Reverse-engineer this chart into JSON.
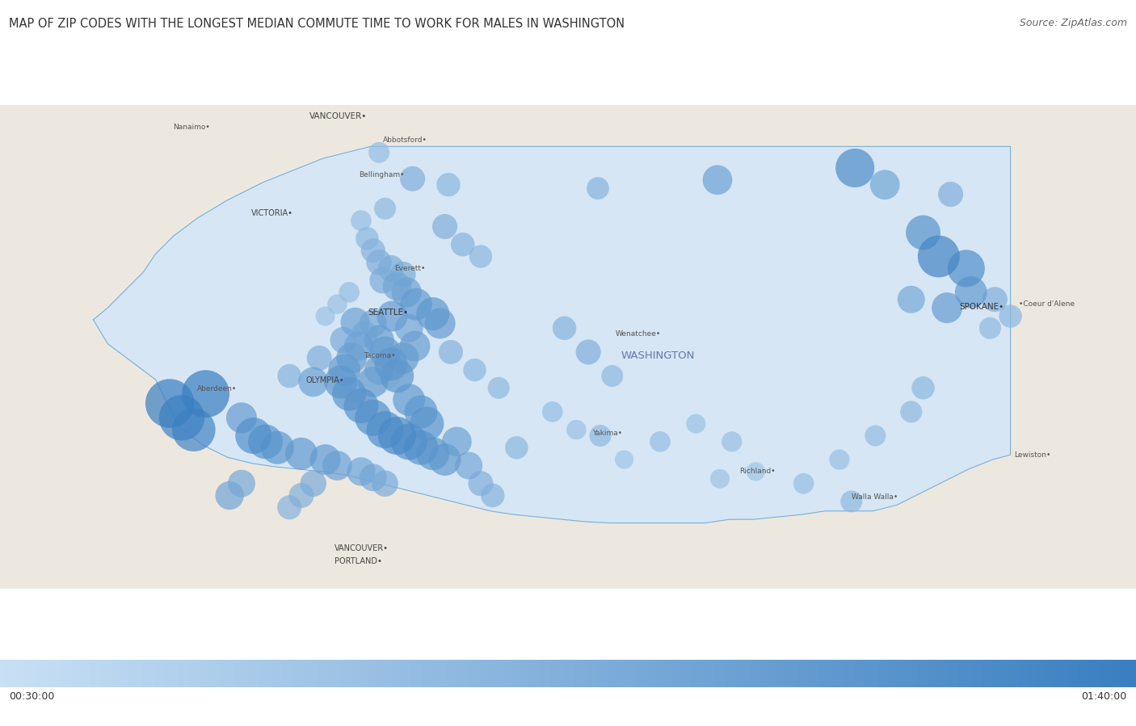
{
  "title": "MAP OF ZIP CODES WITH THE LONGEST MEDIAN COMMUTE TIME TO WORK FOR MALES IN WASHINGTON",
  "source": "Source: ZipAtlas.com",
  "colorbar_min_label": "00:30:00",
  "colorbar_max_label": "01:40:00",
  "colorbar_min": 30,
  "colorbar_max": 100,
  "title_color": "#333333",
  "title_fontsize": 10.5,
  "source_fontsize": 9,
  "gradient_colors": [
    "#c8e0f5",
    "#3a7fc1"
  ],
  "map_extent": [
    -125.5,
    -116.0,
    45.3,
    49.35
  ],
  "wa_fill": "#d4e6f7",
  "wa_border": "#7ab0d4",
  "outside_land": "#ede8df",
  "water_color": "#c9d9e8",
  "dots": [
    {
      "lon": -122.33,
      "lat": 48.95,
      "val": 55,
      "size": 350
    },
    {
      "lon": -122.05,
      "lat": 48.73,
      "val": 65,
      "size": 500
    },
    {
      "lon": -121.75,
      "lat": 48.68,
      "val": 60,
      "size": 450
    },
    {
      "lon": -120.5,
      "lat": 48.65,
      "val": 62,
      "size": 400
    },
    {
      "lon": -119.5,
      "lat": 48.72,
      "val": 75,
      "size": 700
    },
    {
      "lon": -118.35,
      "lat": 48.82,
      "val": 90,
      "size": 1200
    },
    {
      "lon": -118.1,
      "lat": 48.68,
      "val": 72,
      "size": 700
    },
    {
      "lon": -117.55,
      "lat": 48.6,
      "val": 65,
      "size": 500
    },
    {
      "lon": -117.78,
      "lat": 48.28,
      "val": 85,
      "size": 950
    },
    {
      "lon": -117.65,
      "lat": 48.08,
      "val": 95,
      "size": 1400
    },
    {
      "lon": -117.42,
      "lat": 47.98,
      "val": 88,
      "size": 1100
    },
    {
      "lon": -117.38,
      "lat": 47.78,
      "val": 80,
      "size": 820
    },
    {
      "lon": -117.58,
      "lat": 47.65,
      "val": 78,
      "size": 750
    },
    {
      "lon": -117.88,
      "lat": 47.72,
      "val": 70,
      "size": 600
    },
    {
      "lon": -117.18,
      "lat": 47.72,
      "val": 65,
      "size": 500
    },
    {
      "lon": -117.05,
      "lat": 47.58,
      "val": 60,
      "size": 420
    },
    {
      "lon": -117.22,
      "lat": 47.48,
      "val": 58,
      "size": 380
    },
    {
      "lon": -122.3,
      "lat": 47.88,
      "val": 68,
      "size": 550
    },
    {
      "lon": -122.18,
      "lat": 47.83,
      "val": 72,
      "size": 650
    },
    {
      "lon": -122.1,
      "lat": 47.78,
      "val": 75,
      "size": 720
    },
    {
      "lon": -122.02,
      "lat": 47.68,
      "val": 80,
      "size": 820
    },
    {
      "lon": -121.88,
      "lat": 47.6,
      "val": 82,
      "size": 870
    },
    {
      "lon": -121.82,
      "lat": 47.52,
      "val": 78,
      "size": 750
    },
    {
      "lon": -122.22,
      "lat": 47.58,
      "val": 78,
      "size": 750
    },
    {
      "lon": -122.38,
      "lat": 47.52,
      "val": 70,
      "size": 600
    },
    {
      "lon": -122.45,
      "lat": 47.43,
      "val": 68,
      "size": 550
    },
    {
      "lon": -122.5,
      "lat": 47.33,
      "val": 74,
      "size": 680
    },
    {
      "lon": -122.56,
      "lat": 47.23,
      "val": 77,
      "size": 740
    },
    {
      "lon": -122.62,
      "lat": 47.13,
      "val": 80,
      "size": 820
    },
    {
      "lon": -122.65,
      "lat": 47.03,
      "val": 82,
      "size": 870
    },
    {
      "lon": -122.58,
      "lat": 46.93,
      "val": 84,
      "size": 920
    },
    {
      "lon": -122.48,
      "lat": 46.83,
      "val": 86,
      "size": 970
    },
    {
      "lon": -122.38,
      "lat": 46.73,
      "val": 88,
      "size": 1050
    },
    {
      "lon": -122.28,
      "lat": 46.63,
      "val": 90,
      "size": 1100
    },
    {
      "lon": -122.18,
      "lat": 46.58,
      "val": 92,
      "size": 1150
    },
    {
      "lon": -122.08,
      "lat": 46.53,
      "val": 88,
      "size": 1050
    },
    {
      "lon": -121.98,
      "lat": 46.48,
      "val": 85,
      "size": 950
    },
    {
      "lon": -121.88,
      "lat": 46.43,
      "val": 82,
      "size": 870
    },
    {
      "lon": -121.78,
      "lat": 46.38,
      "val": 80,
      "size": 820
    },
    {
      "lon": -122.33,
      "lat": 47.38,
      "val": 76,
      "size": 720
    },
    {
      "lon": -122.28,
      "lat": 47.28,
      "val": 79,
      "size": 790
    },
    {
      "lon": -122.23,
      "lat": 47.18,
      "val": 82,
      "size": 870
    },
    {
      "lon": -122.18,
      "lat": 47.08,
      "val": 83,
      "size": 900
    },
    {
      "lon": -122.88,
      "lat": 47.03,
      "val": 75,
      "size": 700
    },
    {
      "lon": -123.78,
      "lat": 46.93,
      "val": 100,
      "size": 1800
    },
    {
      "lon": -124.08,
      "lat": 46.85,
      "val": 100,
      "size": 1900
    },
    {
      "lon": -123.98,
      "lat": 46.73,
      "val": 98,
      "size": 1650
    },
    {
      "lon": -123.88,
      "lat": 46.63,
      "val": 95,
      "size": 1500
    },
    {
      "lon": -123.38,
      "lat": 46.58,
      "val": 88,
      "size": 1050
    },
    {
      "lon": -123.28,
      "lat": 46.53,
      "val": 85,
      "size": 950
    },
    {
      "lon": -123.18,
      "lat": 46.48,
      "val": 82,
      "size": 870
    },
    {
      "lon": -122.98,
      "lat": 46.43,
      "val": 80,
      "size": 820
    },
    {
      "lon": -122.78,
      "lat": 46.38,
      "val": 78,
      "size": 750
    },
    {
      "lon": -122.68,
      "lat": 46.33,
      "val": 75,
      "size": 700
    },
    {
      "lon": -122.48,
      "lat": 46.28,
      "val": 72,
      "size": 650
    },
    {
      "lon": -122.38,
      "lat": 46.23,
      "val": 70,
      "size": 600
    },
    {
      "lon": -122.28,
      "lat": 46.18,
      "val": 68,
      "size": 550
    },
    {
      "lon": -121.18,
      "lat": 46.48,
      "val": 60,
      "size": 420
    },
    {
      "lon": -120.48,
      "lat": 46.58,
      "val": 58,
      "size": 380
    },
    {
      "lon": -119.98,
      "lat": 46.53,
      "val": 55,
      "size": 340
    },
    {
      "lon": -119.48,
      "lat": 46.22,
      "val": 52,
      "size": 300
    },
    {
      "lon": -119.18,
      "lat": 46.28,
      "val": 50,
      "size": 280
    },
    {
      "lon": -118.78,
      "lat": 46.18,
      "val": 55,
      "size": 340
    },
    {
      "lon": -118.38,
      "lat": 46.03,
      "val": 58,
      "size": 380
    },
    {
      "lon": -120.78,
      "lat": 47.48,
      "val": 62,
      "size": 450
    },
    {
      "lon": -120.58,
      "lat": 47.28,
      "val": 65,
      "size": 500
    },
    {
      "lon": -120.38,
      "lat": 47.08,
      "val": 58,
      "size": 380
    },
    {
      "lon": -122.13,
      "lat": 47.93,
      "val": 67,
      "size": 520
    },
    {
      "lon": -122.08,
      "lat": 47.48,
      "val": 71,
      "size": 630
    },
    {
      "lon": -122.33,
      "lat": 47.13,
      "val": 74,
      "size": 680
    },
    {
      "lon": -122.38,
      "lat": 47.03,
      "val": 77,
      "size": 740
    },
    {
      "lon": -122.08,
      "lat": 46.88,
      "val": 80,
      "size": 820
    },
    {
      "lon": -121.98,
      "lat": 46.78,
      "val": 82,
      "size": 870
    },
    {
      "lon": -121.93,
      "lat": 46.68,
      "val": 84,
      "size": 920
    },
    {
      "lon": -121.68,
      "lat": 46.53,
      "val": 75,
      "size": 700
    },
    {
      "lon": -121.58,
      "lat": 46.33,
      "val": 70,
      "size": 600
    },
    {
      "lon": -121.48,
      "lat": 46.18,
      "val": 65,
      "size": 500
    },
    {
      "lon": -121.38,
      "lat": 46.08,
      "val": 62,
      "size": 450
    },
    {
      "lon": -122.03,
      "lat": 47.33,
      "val": 77,
      "size": 740
    },
    {
      "lon": -122.13,
      "lat": 47.23,
      "val": 79,
      "size": 790
    },
    {
      "lon": -122.53,
      "lat": 47.53,
      "val": 74,
      "size": 680
    },
    {
      "lon": -122.63,
      "lat": 47.38,
      "val": 68,
      "size": 550
    },
    {
      "lon": -122.83,
      "lat": 47.23,
      "val": 65,
      "size": 500
    },
    {
      "lon": -123.08,
      "lat": 47.08,
      "val": 62,
      "size": 450
    },
    {
      "lon": -121.73,
      "lat": 47.28,
      "val": 63,
      "size": 470
    },
    {
      "lon": -121.53,
      "lat": 47.13,
      "val": 60,
      "size": 420
    },
    {
      "lon": -121.33,
      "lat": 46.98,
      "val": 58,
      "size": 380
    },
    {
      "lon": -120.88,
      "lat": 46.78,
      "val": 55,
      "size": 340
    },
    {
      "lon": -120.68,
      "lat": 46.63,
      "val": 53,
      "size": 310
    },
    {
      "lon": -120.28,
      "lat": 46.38,
      "val": 50,
      "size": 280
    },
    {
      "lon": -119.68,
      "lat": 46.68,
      "val": 52,
      "size": 300
    },
    {
      "lon": -119.38,
      "lat": 46.53,
      "val": 54,
      "size": 330
    },
    {
      "lon": -117.78,
      "lat": 46.98,
      "val": 60,
      "size": 420
    },
    {
      "lon": -117.88,
      "lat": 46.78,
      "val": 58,
      "size": 380
    },
    {
      "lon": -118.18,
      "lat": 46.58,
      "val": 56,
      "size": 350
    },
    {
      "lon": -118.48,
      "lat": 46.38,
      "val": 54,
      "size": 330
    },
    {
      "lon": -122.88,
      "lat": 46.18,
      "val": 68,
      "size": 550
    },
    {
      "lon": -122.98,
      "lat": 46.08,
      "val": 65,
      "size": 500
    },
    {
      "lon": -123.08,
      "lat": 45.98,
      "val": 63,
      "size": 470
    },
    {
      "lon": -123.48,
      "lat": 46.18,
      "val": 70,
      "size": 600
    },
    {
      "lon": -123.58,
      "lat": 46.08,
      "val": 72,
      "size": 650
    },
    {
      "lon": -123.48,
      "lat": 46.73,
      "val": 78,
      "size": 750
    },
    {
      "lon": -121.78,
      "lat": 48.33,
      "val": 65,
      "size": 500
    },
    {
      "lon": -121.63,
      "lat": 48.18,
      "val": 62,
      "size": 450
    },
    {
      "lon": -121.48,
      "lat": 48.08,
      "val": 60,
      "size": 420
    },
    {
      "lon": -122.28,
      "lat": 48.48,
      "val": 58,
      "size": 380
    },
    {
      "lon": -122.48,
      "lat": 48.38,
      "val": 55,
      "size": 340
    },
    {
      "lon": -122.43,
      "lat": 48.23,
      "val": 60,
      "size": 420
    },
    {
      "lon": -122.38,
      "lat": 48.13,
      "val": 63,
      "size": 470
    },
    {
      "lon": -122.33,
      "lat": 48.03,
      "val": 66,
      "size": 520
    },
    {
      "lon": -122.23,
      "lat": 47.98,
      "val": 68,
      "size": 550
    },
    {
      "lon": -122.58,
      "lat": 47.78,
      "val": 55,
      "size": 340
    },
    {
      "lon": -122.68,
      "lat": 47.68,
      "val": 53,
      "size": 310
    },
    {
      "lon": -122.78,
      "lat": 47.58,
      "val": 52,
      "size": 300
    }
  ],
  "cities": [
    {
      "name": "VANCOUVER•",
      "lon": -122.67,
      "lat": 49.25,
      "fontsize": 7.5,
      "ha": "center",
      "color": "#444444"
    },
    {
      "name": "Nanaimo•",
      "lon": -124.05,
      "lat": 49.16,
      "fontsize": 6.5,
      "ha": "left",
      "color": "#555555"
    },
    {
      "name": "Abbotsford•",
      "lon": -122.3,
      "lat": 49.05,
      "fontsize": 6.5,
      "ha": "left",
      "color": "#555555"
    },
    {
      "name": "Bellingham•",
      "lon": -122.5,
      "lat": 48.76,
      "fontsize": 6.5,
      "ha": "left",
      "color": "#555555"
    },
    {
      "name": "VICTORIA•",
      "lon": -123.4,
      "lat": 48.44,
      "fontsize": 7.0,
      "ha": "left",
      "color": "#444444"
    },
    {
      "name": "Everett•",
      "lon": -122.2,
      "lat": 47.98,
      "fontsize": 6.5,
      "ha": "left",
      "color": "#555555"
    },
    {
      "name": "SEATTLE•",
      "lon": -122.42,
      "lat": 47.61,
      "fontsize": 7.5,
      "ha": "left",
      "color": "#333333"
    },
    {
      "name": "Tacoma•",
      "lon": -122.46,
      "lat": 47.25,
      "fontsize": 6.5,
      "ha": "left",
      "color": "#555555"
    },
    {
      "name": "OLYMPIA•",
      "lon": -122.94,
      "lat": 47.04,
      "fontsize": 7.0,
      "ha": "left",
      "color": "#444444"
    },
    {
      "name": "Aberdeen•",
      "lon": -123.85,
      "lat": 46.97,
      "fontsize": 6.5,
      "ha": "left",
      "color": "#555555"
    },
    {
      "name": "Wenatchee•",
      "lon": -120.35,
      "lat": 47.43,
      "fontsize": 6.5,
      "ha": "left",
      "color": "#555555"
    },
    {
      "name": "WASHINGTON",
      "lon": -120.0,
      "lat": 47.25,
      "fontsize": 9.5,
      "ha": "center",
      "color": "#6677aa"
    },
    {
      "name": "Yakima•",
      "lon": -120.55,
      "lat": 46.6,
      "fontsize": 6.5,
      "ha": "left",
      "color": "#555555"
    },
    {
      "name": "Richland•",
      "lon": -119.32,
      "lat": 46.28,
      "fontsize": 6.5,
      "ha": "left",
      "color": "#555555"
    },
    {
      "name": "Walla Walla•",
      "lon": -118.38,
      "lat": 46.07,
      "fontsize": 6.5,
      "ha": "left",
      "color": "#555555"
    },
    {
      "name": "SPOKANE•",
      "lon": -117.48,
      "lat": 47.66,
      "fontsize": 7.5,
      "ha": "left",
      "color": "#333333"
    },
    {
      "name": "Lewiston•",
      "lon": -117.02,
      "lat": 46.42,
      "fontsize": 6.5,
      "ha": "left",
      "color": "#555555"
    },
    {
      "name": "•Coeur d'Alene",
      "lon": -116.98,
      "lat": 47.68,
      "fontsize": 6.5,
      "ha": "left",
      "color": "#555555"
    },
    {
      "name": "VANCOUVER•",
      "lon": -122.7,
      "lat": 45.64,
      "fontsize": 7.0,
      "ha": "left",
      "color": "#444444"
    },
    {
      "name": "PORTLAND•",
      "lon": -122.7,
      "lat": 45.53,
      "fontsize": 7.0,
      "ha": "left",
      "color": "#444444"
    }
  ]
}
